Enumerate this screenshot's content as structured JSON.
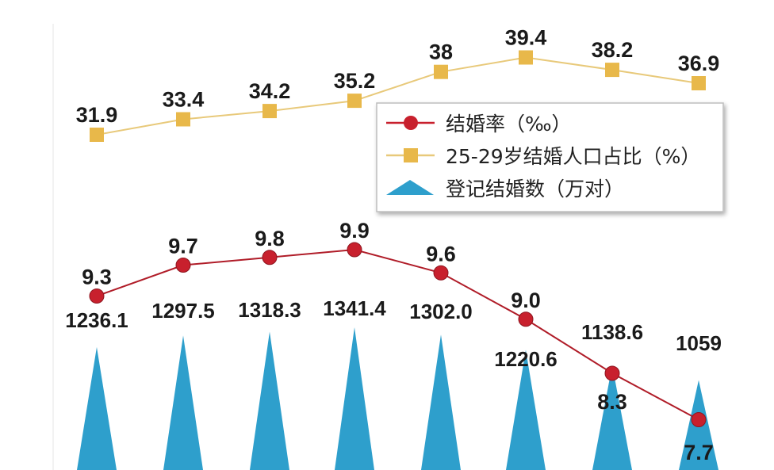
{
  "chart_data": {
    "type": "line",
    "categories": [
      "",
      "",
      "",
      "",
      "",
      "",
      "",
      ""
    ],
    "series": [
      {
        "name": "25-29岁结婚人口占比（%）",
        "kind": "line-square",
        "color": "#e8b84a",
        "values": [
          31.9,
          33.4,
          34.2,
          35.2,
          38,
          39.4,
          38.2,
          36.9
        ],
        "labels": [
          "31.9",
          "33.4",
          "34.2",
          "35.2",
          "38",
          "39.4",
          "38.2",
          "36.9"
        ]
      },
      {
        "name": "结婚率（‰）",
        "kind": "line-circle",
        "color": "#c8202d",
        "values": [
          9.3,
          9.7,
          9.8,
          9.9,
          9.6,
          9.0,
          8.3,
          7.7
        ],
        "labels": [
          "9.3",
          "9.7",
          "9.8",
          "9.9",
          "9.6",
          "9.0",
          "8.3",
          "7.7"
        ]
      },
      {
        "name": "登记结婚数（万对）",
        "kind": "triangle",
        "color": "#2e9fcc",
        "values": [
          1236.1,
          1297.5,
          1318.3,
          1341.4,
          1302.0,
          1220.6,
          1138.6,
          1059
        ],
        "labels": [
          "1236.1",
          "1297.5",
          "1318.3",
          "1341.4",
          "1302.0",
          "1220.6",
          "1138.6",
          "1059"
        ]
      }
    ],
    "legend": {
      "position": "top-right",
      "items": [
        "结婚率（‰）",
        "25-29岁结婚人口占比（%）",
        "登记结婚数（万对）"
      ]
    },
    "grid": false
  }
}
